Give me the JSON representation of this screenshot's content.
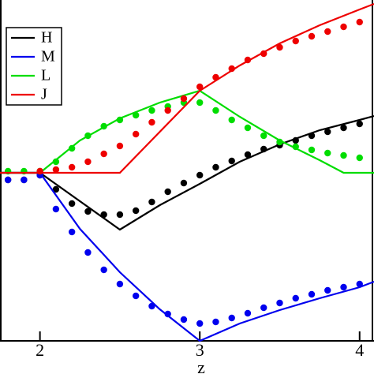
{
  "chart_data": {
    "type": "line",
    "x_label": "z",
    "xlim": [
      1.75,
      4.09
    ],
    "xticks": [
      2,
      3,
      4
    ],
    "ylim": [
      0,
      432
    ],
    "legend": "upper left",
    "series": [
      {
        "name": "H",
        "color": "#000000",
        "x": [
          1.75,
          2,
          2.5,
          2.75,
          3,
          3.25,
          3.5,
          3.75,
          4,
          4.09
        ],
        "values": [
          213,
          213,
          141,
          172,
          199,
          227,
          249,
          267,
          280,
          285
        ],
        "points_x": [
          1.8,
          1.9,
          2.0,
          2.1,
          2.2,
          2.3,
          2.4,
          2.5,
          2.6,
          2.7,
          2.8,
          2.9,
          3.0,
          3.1,
          3.2,
          3.3,
          3.4,
          3.5,
          3.6,
          3.7,
          3.8,
          3.9,
          4.0
        ],
        "points": [
          204,
          204,
          210,
          192,
          174,
          164,
          160,
          160,
          165,
          176,
          189,
          200,
          210,
          220,
          228,
          236,
          243,
          248,
          254,
          260,
          265,
          270,
          275
        ]
      },
      {
        "name": "M",
        "color": "#0000ee",
        "x": [
          1.75,
          2,
          2.25,
          2.5,
          2.75,
          3,
          3.25,
          3.5,
          3.75,
          4,
          4.09
        ],
        "values": [
          213,
          213,
          142,
          87,
          40,
          0,
          22,
          39,
          54,
          68,
          75
        ],
        "points_x": [
          1.8,
          1.9,
          2.0,
          2.1,
          2.2,
          2.3,
          2.4,
          2.5,
          2.6,
          2.7,
          2.8,
          2.9,
          3.0,
          3.1,
          3.2,
          3.3,
          3.4,
          3.5,
          3.6,
          3.7,
          3.8,
          3.9,
          4.0
        ],
        "points": [
          204,
          204,
          210,
          167,
          138,
          112,
          90,
          72,
          57,
          44,
          34,
          27,
          22,
          24,
          29,
          35,
          42,
          48,
          54,
          59,
          64,
          68,
          72
        ]
      },
      {
        "name": "L",
        "color": "#00dd00",
        "x": [
          1.75,
          2,
          2.25,
          2.5,
          2.75,
          3,
          3.25,
          3.5,
          3.75,
          3.9,
          4.09
        ],
        "values": [
          213,
          213,
          254,
          282,
          302,
          317,
          284,
          254,
          229,
          213,
          213
        ],
        "points_x": [
          1.8,
          1.9,
          2.0,
          2.1,
          2.2,
          2.3,
          2.4,
          2.5,
          2.6,
          2.7,
          2.8,
          2.9,
          3.0,
          3.1,
          3.2,
          3.3,
          3.4,
          3.5,
          3.6,
          3.7,
          3.8,
          3.9,
          4.0
        ],
        "points": [
          215,
          215,
          215,
          227,
          244,
          260,
          272,
          280,
          286,
          292,
          297,
          302,
          302,
          292,
          280,
          270,
          260,
          252,
          246,
          242,
          238,
          235,
          232
        ]
      },
      {
        "name": "J",
        "color": "#ee0000",
        "x": [
          1.75,
          2.5,
          3,
          3.25,
          3.5,
          3.75,
          4,
          4.09
        ],
        "values": [
          213,
          213,
          317,
          349,
          377,
          400,
          420,
          427
        ],
        "points_x": [
          2.0,
          2.1,
          2.2,
          2.3,
          2.4,
          2.5,
          2.6,
          2.7,
          2.8,
          2.9,
          3.0,
          3.1,
          3.2,
          3.3,
          3.4,
          3.5,
          3.6,
          3.7,
          3.8,
          3.9,
          4.0
        ],
        "points": [
          215,
          217,
          220,
          227,
          237,
          247,
          262,
          277,
          292,
          307,
          322,
          334,
          345,
          356,
          364,
          372,
          380,
          386,
          392,
          398,
          404
        ]
      }
    ]
  }
}
